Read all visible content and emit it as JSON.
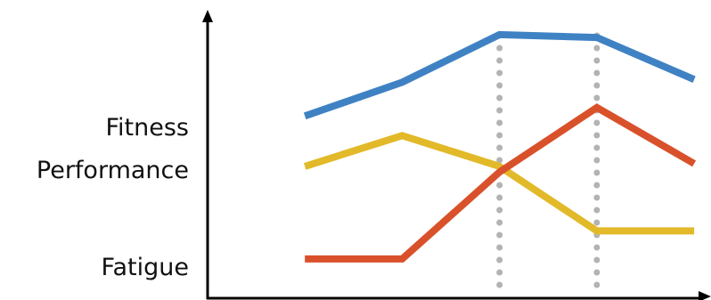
{
  "chart_data": {
    "type": "line",
    "title": "",
    "xlabel": "",
    "ylabel": "",
    "x": [
      1,
      2,
      3,
      4,
      5
    ],
    "xlim": [
      0,
      5.1
    ],
    "ylim": [
      0,
      10
    ],
    "grid": false,
    "axis_labels_at_line_start": true,
    "markers_at_x": [
      3,
      4
    ],
    "marker_color": "#b3b3b3",
    "series": [
      {
        "name": "Fitness",
        "color": "#3f82c4",
        "values": [
          6.5,
          7.7,
          9.4,
          9.3,
          7.8
        ]
      },
      {
        "name": "Performance",
        "color": "#e2b928",
        "values": [
          4.7,
          5.8,
          4.7,
          2.4,
          2.4
        ]
      },
      {
        "name": "Fatigue",
        "color": "#d9512b",
        "values": [
          1.4,
          1.4,
          4.5,
          6.8,
          4.8
        ]
      }
    ]
  }
}
